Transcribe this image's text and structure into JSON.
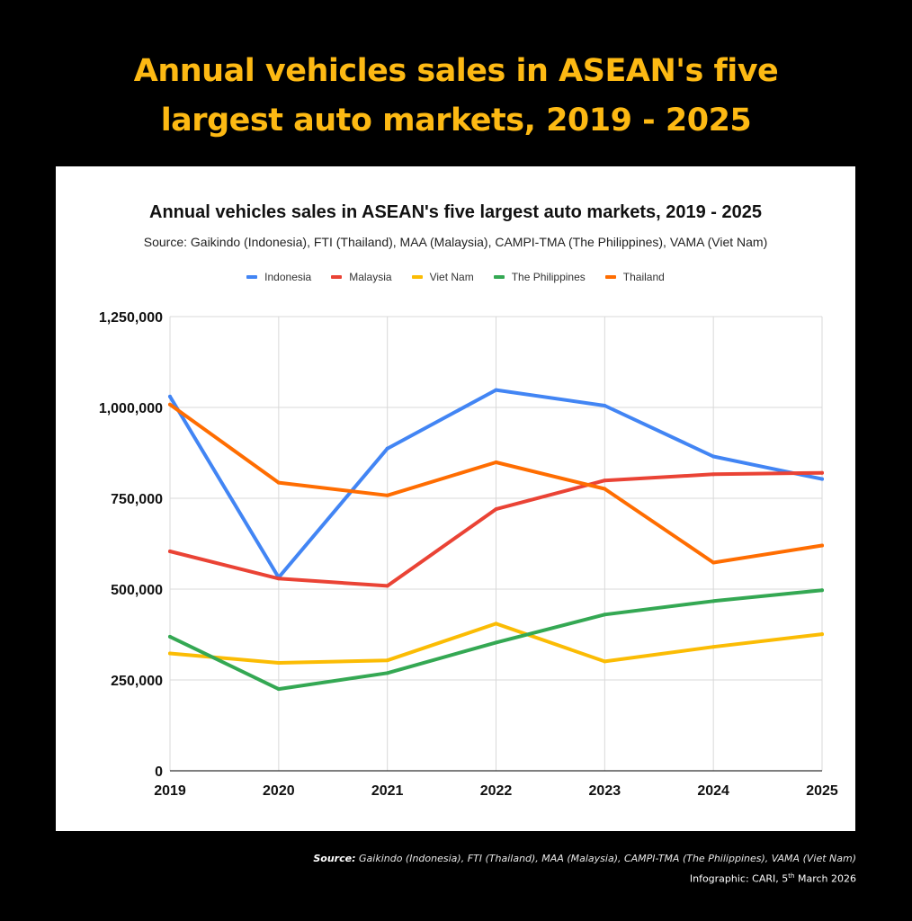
{
  "headline": {
    "line1": "Annual vehicles sales in ASEAN's five",
    "line2": "largest auto markets, 2019 - 2025"
  },
  "footer": {
    "source_label": "Source:",
    "source_text": "Gaikindo (Indonesia), FTI (Thailand), MAA (Malaysia), CAMPI-TMA (The Philippines), VAMA (Viet Nam)",
    "credit_prefix": "Infographic: CARI, 5",
    "credit_sup": "th",
    "credit_suffix": " March 2026"
  },
  "chart_data": {
    "type": "line",
    "title": "Annual vehicles sales in ASEAN's five largest auto markets, 2019 - 2025",
    "subtitle": "Source: Gaikindo (Indonesia), FTI (Thailand), MAA (Malaysia), CAMPI-TMA (The Philippines), VAMA (Viet Nam)",
    "xlabel": "",
    "ylabel": "",
    "x": [
      "2019",
      "2020",
      "2021",
      "2022",
      "2023",
      "2024",
      "2025"
    ],
    "ylim": [
      0,
      1250000
    ],
    "yticks": [
      0,
      250000,
      500000,
      750000,
      1000000,
      1250000
    ],
    "ytick_labels": [
      "0",
      "250,000",
      "500,000",
      "750,000",
      "1,000,000",
      "1,250,000"
    ],
    "grid": true,
    "legend_position": "top-center",
    "series": [
      {
        "name": "Indonesia",
        "color": "#4285F4",
        "values": [
          1030000,
          532000,
          887000,
          1048000,
          1005000,
          865000,
          803000
        ]
      },
      {
        "name": "Malaysia",
        "color": "#EA4335",
        "values": [
          604000,
          529000,
          509000,
          720000,
          799000,
          816000,
          820000
        ]
      },
      {
        "name": "Viet Nam",
        "color": "#FBBC04",
        "values": [
          323000,
          297000,
          304000,
          405000,
          301000,
          341000,
          376000
        ]
      },
      {
        "name": "The Philippines",
        "color": "#34A853",
        "values": [
          369000,
          225000,
          269000,
          353000,
          430000,
          467000,
          497000
        ]
      },
      {
        "name": "Thailand",
        "color": "#FF6D01",
        "values": [
          1008000,
          793000,
          758000,
          849000,
          776000,
          573000,
          620000
        ]
      }
    ]
  }
}
